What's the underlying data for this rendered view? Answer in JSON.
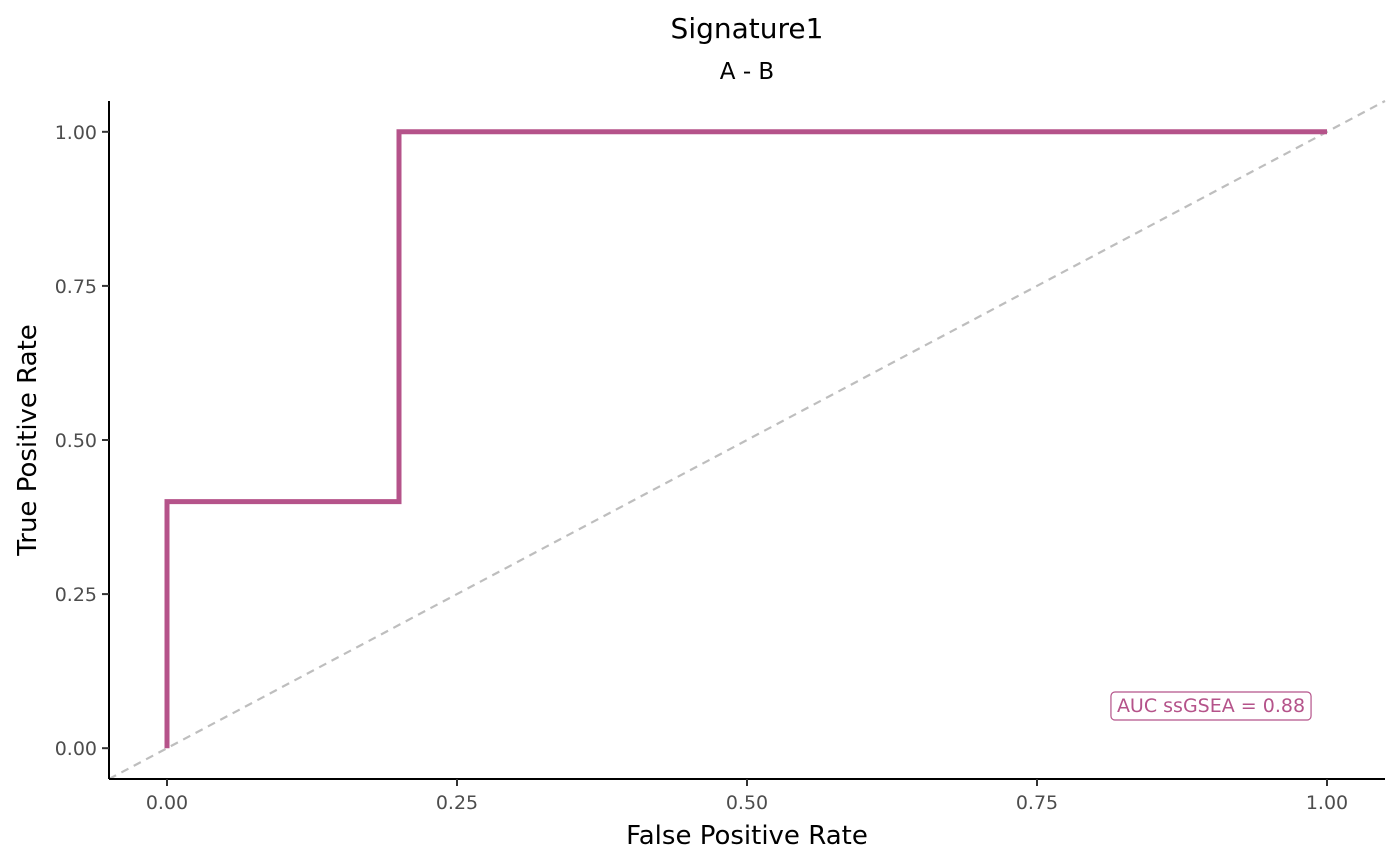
{
  "chart_data": {
    "type": "line",
    "title": "Signature1",
    "subtitle": "A - B",
    "xlabel": "False Positive Rate",
    "ylabel": "True Positive Rate",
    "xlim": [
      -0.05,
      1.05
    ],
    "ylim": [
      -0.05,
      1.05
    ],
    "x_ticks": [
      0,
      0.25,
      0.5,
      0.75,
      1
    ],
    "x_tick_labels": [
      "0.00",
      "0.25",
      "0.50",
      "0.75",
      "1.00"
    ],
    "y_ticks": [
      0,
      0.25,
      0.5,
      0.75,
      1
    ],
    "y_tick_labels": [
      "0.00",
      "0.25",
      "0.50",
      "0.75",
      "1.00"
    ],
    "grid": false,
    "series": [
      {
        "color": "#b5538a",
        "x": [
          0,
          0,
          0.2,
          0.2,
          1
        ],
        "y": [
          0,
          0.4,
          0.4,
          1,
          1
        ]
      }
    ],
    "reference_line": {
      "x": [
        -0.05,
        1.05
      ],
      "y": [
        -0.05,
        1.05
      ],
      "style": "dashed",
      "color": "#bebebe"
    },
    "annotations": [
      {
        "text": "AUC ssGSEA = 0.88",
        "x": 0.9,
        "y": 0.07,
        "color": "#b5538a",
        "boxed": true
      }
    ]
  }
}
